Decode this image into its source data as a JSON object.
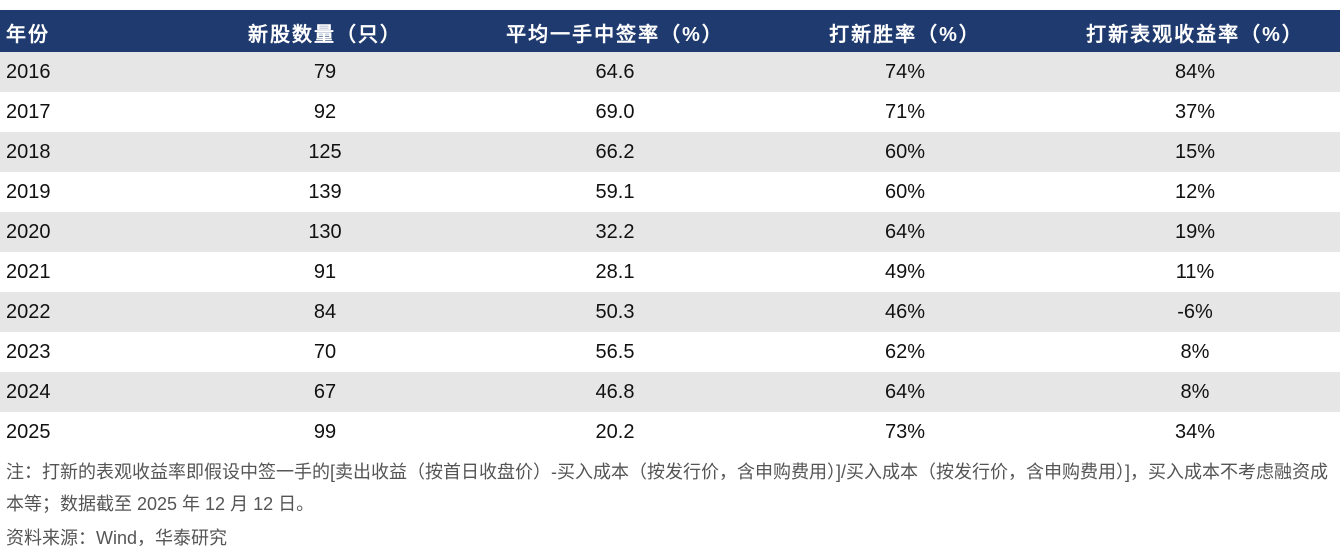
{
  "table": {
    "header": [
      "年份",
      "新股数量（只）",
      "平均一手中签率（%）",
      "打新胜率（%）",
      "打新表观收益率（%）"
    ],
    "rows": [
      [
        "2016",
        "79",
        "64.6",
        "74%",
        "84%"
      ],
      [
        "2017",
        "92",
        "69.0",
        "71%",
        "37%"
      ],
      [
        "2018",
        "125",
        "66.2",
        "60%",
        "15%"
      ],
      [
        "2019",
        "139",
        "59.1",
        "60%",
        "12%"
      ],
      [
        "2020",
        "130",
        "32.2",
        "64%",
        "19%"
      ],
      [
        "2021",
        "91",
        "28.1",
        "49%",
        "11%"
      ],
      [
        "2022",
        "84",
        "50.3",
        "46%",
        "-6%"
      ],
      [
        "2023",
        "70",
        "56.5",
        "62%",
        "8%"
      ],
      [
        "2024",
        "67",
        "46.8",
        "64%",
        "8%"
      ],
      [
        "2025",
        "99",
        "20.2",
        "73%",
        "34%"
      ]
    ]
  },
  "note": "注：打新的表观收益率即假设中签一手的[卖出收益（按首日收盘价）-买入成本（按发行价，含申购费用）]/买入成本（按发行价，含申购费用）]，买入成本不考虑融资成本等；数据截至 2025 年 12 月 12 日。",
  "source": "资料来源：Wind，华泰研究"
}
